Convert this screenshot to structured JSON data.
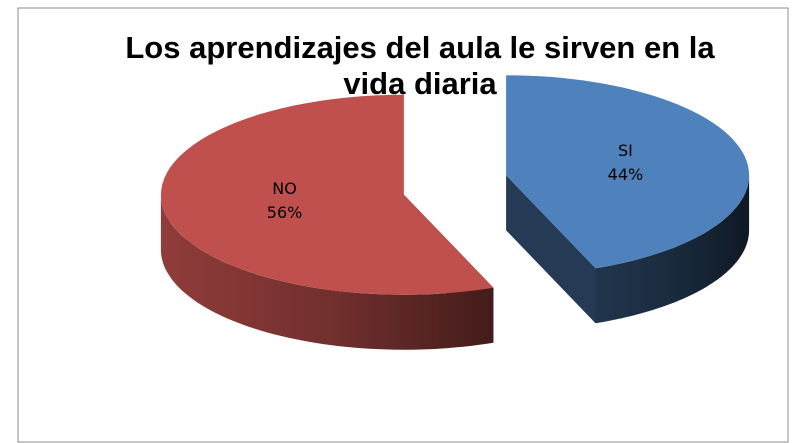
{
  "chart_data": {
    "type": "pie3d",
    "title": "Los aprendizajes del aula le sirven en la vida diaria",
    "categories": [
      "SI",
      "NO"
    ],
    "values": [
      44,
      56
    ],
    "value_labels": [
      "44%",
      "56%"
    ],
    "colors": [
      "#4f81bd",
      "#c0504d"
    ]
  }
}
